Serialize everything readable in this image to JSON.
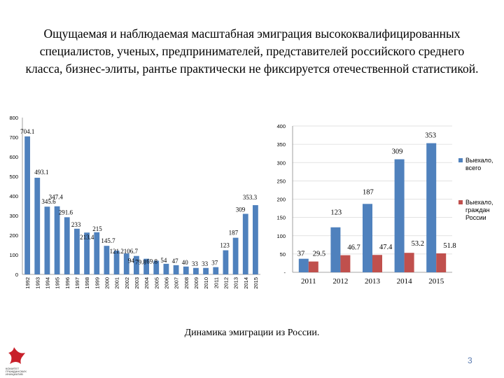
{
  "title": "Ощущаемая и наблюдаемая масштабная эмиграция высококвалифицированных специалистов, ученых, предпринимателей, представителей российского среднего класса, бизнес-элиты, рантье практически не фиксируется отечественной статистикой.",
  "caption": "Динамика эмиграции из России.",
  "page_number": "3",
  "logo": {
    "lines": [
      "КОМИТЕТ",
      "ГРАЖДАНСКИХ",
      "ИНИЦИАТИВ"
    ],
    "color": "#c8202a"
  },
  "colors": {
    "bar_blue": "#4f81bd",
    "bar_red": "#c0504d",
    "grid": "#d9d9d9"
  },
  "chart_data": [
    {
      "type": "bar",
      "categories": [
        "1992",
        "1993",
        "1994",
        "1995",
        "1996",
        "1997",
        "1998",
        "1999",
        "2000",
        "2001",
        "2002",
        "2003",
        "2004",
        "2005",
        "2006",
        "2007",
        "2008",
        "2009",
        "2010",
        "2011",
        "2012",
        "2013",
        "2014",
        "2015"
      ],
      "values": [
        704.1,
        493.1,
        345.6,
        347.4,
        291.6,
        233,
        213.4,
        215,
        145.7,
        121.2,
        106.7,
        94,
        79.8,
        69.8,
        54,
        47,
        40,
        33,
        33,
        37,
        123,
        187,
        309,
        353.3
      ],
      "data_labels": [
        "704.1",
        "493.1",
        "345.6",
        "347.4",
        "291.6",
        "233",
        "213.4",
        "215",
        "145.7",
        "121.2",
        "106.7",
        "94",
        "79.8",
        "69.8",
        "54",
        "47",
        "40",
        "33",
        "33",
        "37",
        "123",
        "187",
        "309",
        "353.3"
      ],
      "ylim": [
        0,
        800
      ],
      "yticks": [
        "0",
        "100",
        "200",
        "300",
        "400",
        "500",
        "600",
        "700",
        "800"
      ],
      "grid": false
    },
    {
      "type": "bar",
      "categories": [
        "2011",
        "2012",
        "2013",
        "2014",
        "2015"
      ],
      "series": [
        {
          "name": "Выехало, всего",
          "values": [
            37,
            123,
            187,
            309,
            353
          ],
          "data_labels": [
            "37",
            "123",
            "187",
            "309",
            "353"
          ]
        },
        {
          "name": "Выехало, граждан России",
          "values": [
            29.5,
            46.7,
            47.4,
            53.2,
            51.8
          ],
          "data_labels": [
            "29.5",
            "46.7",
            "47.4",
            "53.2",
            "51.8"
          ]
        }
      ],
      "ylim": [
        0,
        400
      ],
      "yticks": [
        "-",
        "50",
        "100",
        "150",
        "200",
        "250",
        "300",
        "350",
        "400"
      ],
      "grid": true,
      "legend": "right"
    }
  ]
}
